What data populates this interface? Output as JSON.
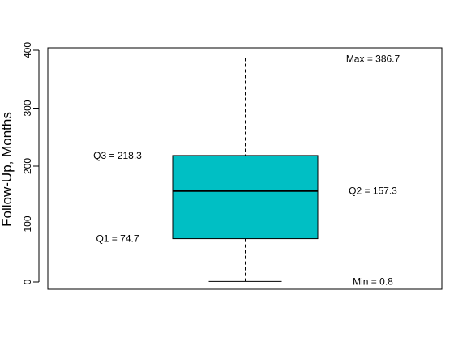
{
  "chart_data": {
    "type": "box",
    "ylabel": "Follow-Up, Months",
    "ylim": [
      0,
      400
    ],
    "yticks": [
      0,
      100,
      200,
      300,
      400
    ],
    "grid": false,
    "box": {
      "min": 0.8,
      "q1": 74.7,
      "median": 157.3,
      "q3": 218.3,
      "max": 386.7,
      "fill": "#00BFC4"
    },
    "annotations": {
      "max": "Max = 386.7",
      "q3": "Q3 = 218.3",
      "q2": "Q2 = 157.3",
      "q1": "Q1 = 74.7",
      "min": "Min = 0.8"
    }
  }
}
